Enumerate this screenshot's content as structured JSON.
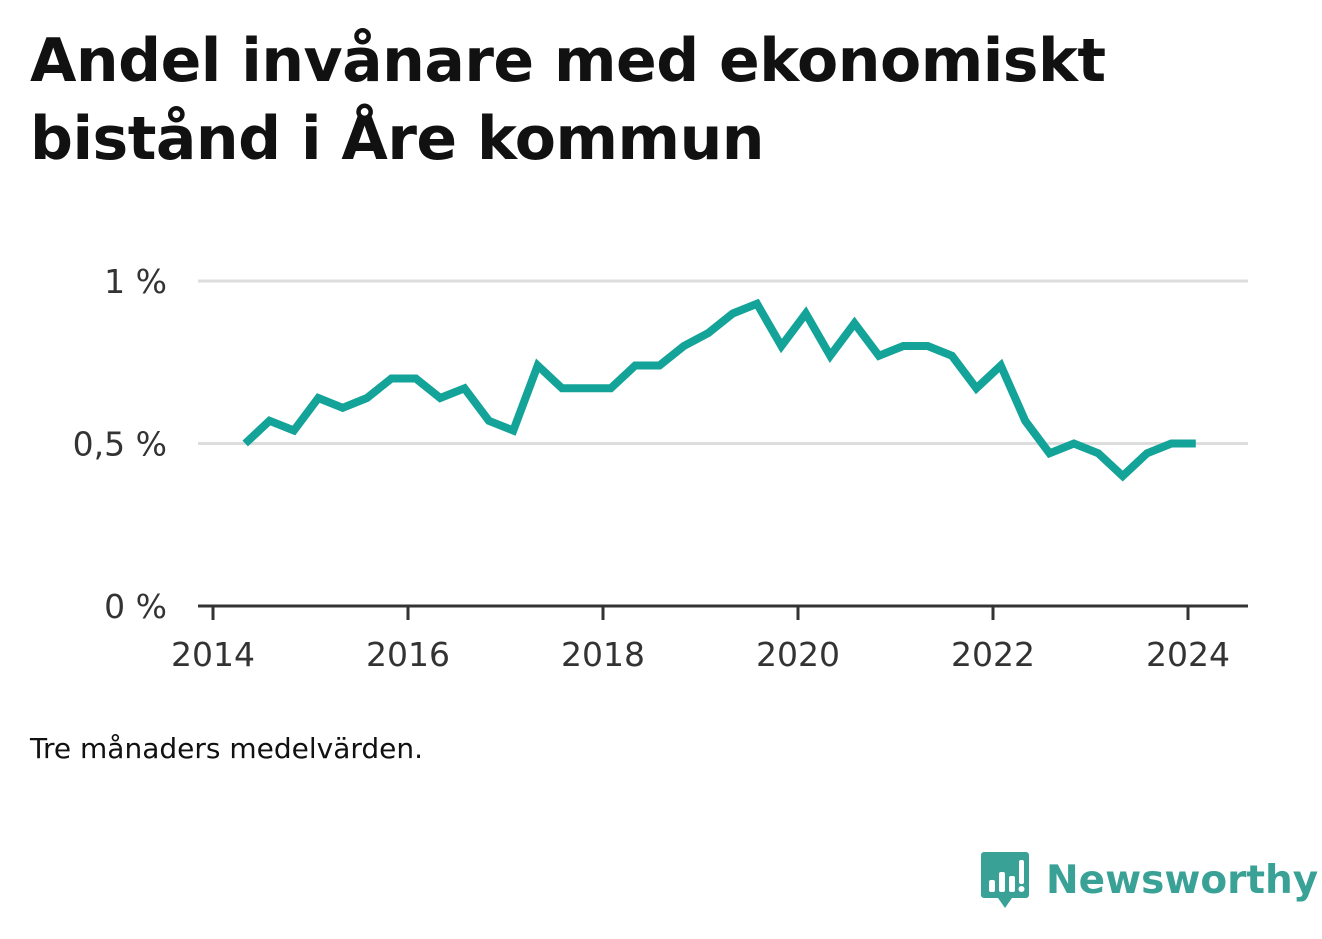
{
  "title": "Andel invånare med ekonomiskt bistånd i Åre kommun",
  "note": "Tre månaders medelvärden.",
  "brand": {
    "name": "Newsworthy",
    "icon": "bar-chart-speech-bubble-icon",
    "color": "#3aa197"
  },
  "chart_data": {
    "type": "line",
    "title": "Andel invånare med ekonomiskt bistånd i Åre kommun",
    "xlabel": "",
    "ylabel": "",
    "xlim": [
      2014.0,
      2024.6
    ],
    "ylim": [
      0,
      1
    ],
    "y_ticks": [
      {
        "value": 0,
        "label": "0 %"
      },
      {
        "value": 0.5,
        "label": "0,5 %"
      },
      {
        "value": 1,
        "label": "1 %"
      }
    ],
    "x_ticks": [
      {
        "value": 2014,
        "label": "2014"
      },
      {
        "value": 2016,
        "label": "2016"
      },
      {
        "value": 2018,
        "label": "2018"
      },
      {
        "value": 2020,
        "label": "2020"
      },
      {
        "value": 2022,
        "label": "2022"
      },
      {
        "value": 2024,
        "label": "2024"
      }
    ],
    "grid": true,
    "legend": "none",
    "colors": {
      "line": "#13a398",
      "grid": "#dddddd",
      "axis": "#333333"
    },
    "series": [
      {
        "x": [
          2014.33,
          2014.58,
          2014.83,
          2015.08,
          2015.33,
          2015.58,
          2015.83,
          2016.08,
          2016.33,
          2016.58,
          2016.83,
          2017.08,
          2017.33,
          2017.58,
          2017.83,
          2018.08,
          2018.33,
          2018.58,
          2018.83,
          2019.08,
          2019.33,
          2019.58,
          2019.83,
          2020.08,
          2020.33,
          2020.58,
          2020.83,
          2021.08,
          2021.33,
          2021.58,
          2021.83,
          2022.08,
          2022.33,
          2022.58,
          2022.83,
          2023.08,
          2023.33,
          2023.58,
          2023.83,
          2024.08
        ],
        "values": [
          0.5,
          0.57,
          0.54,
          0.64,
          0.61,
          0.64,
          0.7,
          0.7,
          0.64,
          0.67,
          0.57,
          0.54,
          0.74,
          0.67,
          0.67,
          0.67,
          0.74,
          0.74,
          0.8,
          0.84,
          0.9,
          0.93,
          0.8,
          0.9,
          0.77,
          0.87,
          0.77,
          0.8,
          0.8,
          0.77,
          0.67,
          0.74,
          0.57,
          0.47,
          0.5,
          0.47,
          0.4,
          0.47,
          0.5,
          0.5
        ]
      }
    ]
  }
}
